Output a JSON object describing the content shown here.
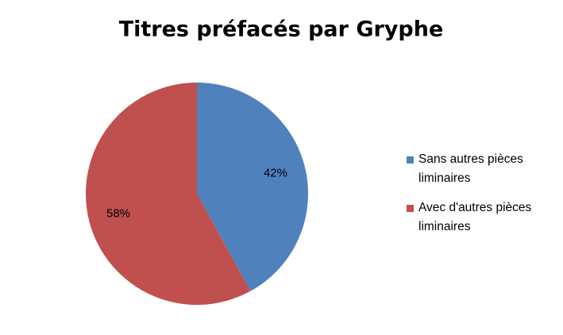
{
  "chart_data": {
    "type": "pie",
    "title": "Titres préfacés par Gryphe",
    "categories": [
      "Sans autres pièces liminaires",
      "Avec d'autres pièces liminaires"
    ],
    "values": [
      42,
      58
    ],
    "value_labels": [
      "42%",
      "58%"
    ],
    "colors": [
      "#4f81bd",
      "#c0504d"
    ]
  }
}
